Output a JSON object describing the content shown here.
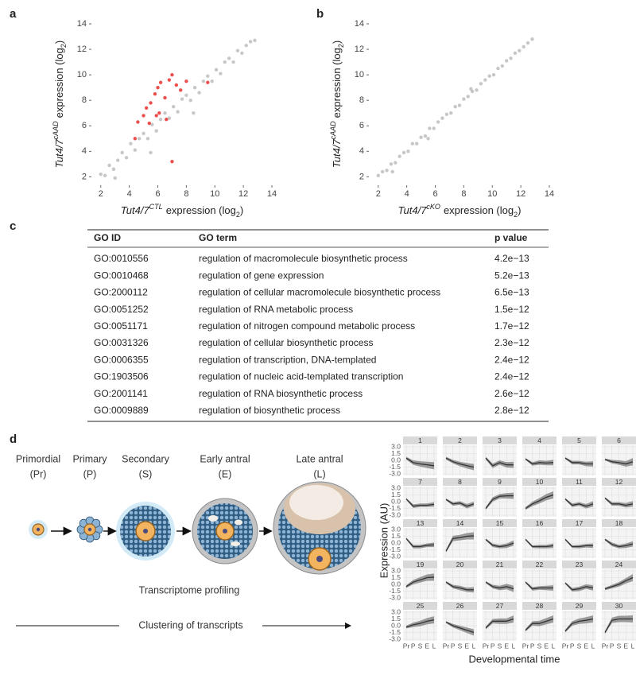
{
  "panel_labels": [
    "a",
    "b",
    "c",
    "d"
  ],
  "chart_data": [
    {
      "type": "scatter",
      "xlim": [
        1.4,
        14
      ],
      "ylim": [
        1.4,
        14
      ],
      "xticks": [
        2,
        4,
        6,
        8,
        10,
        12,
        14
      ],
      "yticks": [
        2,
        4,
        6,
        8,
        10,
        12,
        14
      ],
      "x_label": [
        "Tut4/7",
        "CTL",
        "expression (log",
        "2",
        ")"
      ],
      "y_label": [
        "Tut4/7",
        "cAAD",
        "expression (log",
        "2",
        ")"
      ],
      "series": [
        {
          "color": "#bdbdbd",
          "x": [
            2,
            2.3,
            2.6,
            2.9,
            3.2,
            3.5,
            3.8,
            4.1,
            4.4,
            4.7,
            5,
            5.3,
            5.6,
            5.9,
            6.2,
            6.5,
            6.8,
            7.1,
            7.4,
            7.7,
            8,
            8.3,
            8.6,
            8.9,
            9.2,
            9.5,
            9.8,
            10.1,
            10.4,
            10.7,
            11,
            11.3,
            11.6,
            11.9,
            12.2,
            12.5,
            12.8,
            3,
            5.5,
            8.5
          ],
          "values": [
            2.2,
            2.1,
            2.9,
            2.6,
            3.3,
            3.9,
            3.5,
            4.6,
            4.1,
            5.0,
            5.4,
            5.0,
            6.1,
            5.6,
            6.5,
            7.0,
            6.6,
            7.5,
            7.1,
            8.1,
            8.4,
            8.0,
            9.0,
            8.6,
            9.5,
            9.9,
            9.5,
            10.4,
            10.1,
            11.0,
            11.3,
            11.0,
            11.9,
            11.7,
            12.3,
            12.6,
            12.7,
            1.9,
            3.9,
            7.0
          ]
        },
        {
          "color": "#e8312f",
          "x": [
            4.6,
            5,
            5.2,
            5.5,
            5.8,
            6,
            6.2,
            6.5,
            6.8,
            7,
            7.3,
            7.6,
            8,
            5.4,
            6.1,
            4.4,
            6.6,
            9.5,
            7,
            5.9
          ],
          "values": [
            6.3,
            6.8,
            7.4,
            7.8,
            8.5,
            9,
            9.4,
            8.2,
            9.6,
            10,
            9.2,
            8.8,
            9.5,
            6.2,
            7,
            5,
            6.5,
            9.4,
            3.2,
            6.8
          ]
        }
      ]
    },
    {
      "type": "scatter",
      "xlim": [
        1.4,
        14
      ],
      "ylim": [
        1.4,
        14
      ],
      "xticks": [
        2,
        4,
        6,
        8,
        10,
        12,
        14
      ],
      "yticks": [
        2,
        4,
        6,
        8,
        10,
        12,
        14
      ],
      "x_label": [
        "Tut4/7",
        "cKO",
        "expression (log",
        "2",
        ")"
      ],
      "y_label": [
        "Tut4/7",
        "cAAD",
        "expression (log",
        "2",
        ")"
      ],
      "series": [
        {
          "color": "#bdbdbd",
          "x": [
            2,
            2.3,
            2.6,
            2.9,
            3.2,
            3.5,
            3.8,
            4.1,
            4.4,
            4.7,
            5,
            5.3,
            5.6,
            5.9,
            6.2,
            6.5,
            6.8,
            7.1,
            7.4,
            7.7,
            8,
            8.3,
            8.6,
            8.9,
            9.2,
            9.5,
            9.8,
            10.1,
            10.4,
            10.7,
            11,
            11.3,
            11.6,
            11.9,
            12.2,
            12.5,
            12.8,
            3,
            5.5,
            8.5
          ],
          "values": [
            2.1,
            2.4,
            2.5,
            3.0,
            3.1,
            3.6,
            3.9,
            4.0,
            4.6,
            4.6,
            5.1,
            5.2,
            5.8,
            5.8,
            6.3,
            6.6,
            6.9,
            7.0,
            7.5,
            7.6,
            8.1,
            8.3,
            8.7,
            8.8,
            9.3,
            9.6,
            9.9,
            10.0,
            10.5,
            10.7,
            11.1,
            11.3,
            11.7,
            11.9,
            12.2,
            12.5,
            12.8,
            2.4,
            5.0,
            8.9
          ]
        }
      ]
    },
    {
      "type": "line",
      "categories": [
        "Pr",
        "P",
        "S",
        "E",
        "L"
      ],
      "ylim": [
        -3,
        3
      ],
      "yticks": [
        {
          "value": 3,
          "label": "3.0"
        },
        {
          "value": 1.5,
          "label": "1.5"
        },
        {
          "value": 0,
          "label": "0.0"
        },
        {
          "value": -1.5,
          "label": "-1.5"
        },
        {
          "value": -3,
          "label": "-3.0"
        }
      ],
      "y_label": "Expression (AU)",
      "x_label": "Developmental time",
      "band_color": "#8a8a8a",
      "series": [
        {
          "name": "1",
          "color": "#333333",
          "values": [
            0.5,
            -0.5,
            -0.8,
            -1,
            -1.2
          ],
          "spread": [
            0.3,
            0.5,
            0.6,
            0.7,
            0.8
          ]
        },
        {
          "name": "2",
          "color": "#333333",
          "values": [
            0.5,
            -0.3,
            -0.8,
            -1.2,
            -1.5
          ],
          "spread": [
            0.3,
            0.4,
            0.5,
            0.6,
            0.7
          ]
        },
        {
          "name": "3",
          "color": "#333333",
          "values": [
            0.5,
            -1.2,
            -0.5,
            -1,
            -1
          ],
          "spread": [
            0.3,
            0.5,
            0.5,
            0.6,
            0.7
          ]
        },
        {
          "name": "4",
          "color": "#333333",
          "values": [
            0.3,
            -0.8,
            -0.5,
            -0.6,
            -0.5
          ],
          "spread": [
            0.2,
            0.4,
            0.5,
            0.5,
            0.6
          ]
        },
        {
          "name": "5",
          "color": "#333333",
          "values": [
            0.5,
            -0.5,
            -0.5,
            -0.8,
            -0.8
          ],
          "spread": [
            0.2,
            0.4,
            0.4,
            0.5,
            0.6
          ]
        },
        {
          "name": "6",
          "color": "#333333",
          "values": [
            0.2,
            -0.3,
            -0.5,
            -0.8,
            -0.3
          ],
          "spread": [
            0.2,
            0.4,
            0.5,
            0.6,
            0.8
          ]
        },
        {
          "name": "7",
          "color": "#333333",
          "values": [
            0.6,
            -1,
            -0.8,
            -0.8,
            -0.6
          ],
          "spread": [
            0.2,
            0.4,
            0.4,
            0.4,
            0.5
          ]
        },
        {
          "name": "8",
          "color": "#333333",
          "values": [
            0.5,
            -0.5,
            -0.3,
            -1,
            -0.5
          ],
          "spread": [
            0.2,
            0.4,
            0.4,
            0.5,
            0.5
          ]
        },
        {
          "name": "9",
          "color": "#333333",
          "values": [
            -1.5,
            0.5,
            1.2,
            1.3,
            1.3
          ],
          "spread": [
            0.3,
            0.5,
            0.5,
            0.6,
            0.7
          ]
        },
        {
          "name": "10",
          "color": "#333333",
          "values": [
            -1.5,
            -0.5,
            0.2,
            1,
            1.5
          ],
          "spread": [
            0.3,
            0.5,
            0.6,
            0.7,
            0.8
          ]
        },
        {
          "name": "11",
          "color": "#333333",
          "values": [
            0.6,
            -0.8,
            -0.5,
            -1,
            -0.5
          ],
          "spread": [
            0.2,
            0.4,
            0.4,
            0.5,
            0.6
          ]
        },
        {
          "name": "12",
          "color": "#333333",
          "values": [
            0.8,
            -0.5,
            -0.5,
            -0.8,
            -0.5
          ],
          "spread": [
            0.2,
            0.4,
            0.4,
            0.5,
            0.6
          ]
        },
        {
          "name": "13",
          "color": "#333333",
          "values": [
            1,
            -0.8,
            -0.8,
            -0.5,
            -0.4
          ],
          "spread": [
            0.2,
            0.4,
            0.4,
            0.4,
            0.5
          ]
        },
        {
          "name": "14",
          "color": "#333333",
          "values": [
            -1.8,
            1,
            1.2,
            1.5,
            1.6
          ],
          "spread": [
            0.3,
            0.6,
            0.6,
            0.7,
            0.8
          ]
        },
        {
          "name": "15",
          "color": "#333333",
          "values": [
            0.8,
            -0.5,
            -0.8,
            -0.6,
            0
          ],
          "spread": [
            0.2,
            0.4,
            0.4,
            0.5,
            0.6
          ]
        },
        {
          "name": "16",
          "color": "#333333",
          "values": [
            0.8,
            -0.8,
            -0.8,
            -0.8,
            -0.6
          ],
          "spread": [
            0.2,
            0.3,
            0.4,
            0.4,
            0.5
          ]
        },
        {
          "name": "17",
          "color": "#333333",
          "values": [
            0.8,
            -0.8,
            -0.8,
            -0.6,
            -0.6
          ],
          "spread": [
            0.2,
            0.3,
            0.4,
            0.4,
            0.5
          ]
        },
        {
          "name": "18",
          "color": "#333333",
          "values": [
            0.8,
            -0.3,
            -0.8,
            -0.6,
            -0.2
          ],
          "spread": [
            0.2,
            0.4,
            0.4,
            0.5,
            0.6
          ]
        },
        {
          "name": "19",
          "color": "#333333",
          "values": [
            -0.5,
            0.5,
            1,
            1.5,
            1.6
          ],
          "spread": [
            0.3,
            0.5,
            0.6,
            0.7,
            0.8
          ]
        },
        {
          "name": "20",
          "color": "#333333",
          "values": [
            0.5,
            -0.5,
            -0.8,
            -1.2,
            -1.2
          ],
          "spread": [
            0.2,
            0.4,
            0.5,
            0.5,
            0.6
          ]
        },
        {
          "name": "21",
          "color": "#333333",
          "values": [
            0.5,
            -0.5,
            -0.8,
            -0.5,
            -1
          ],
          "spread": [
            0.2,
            0.4,
            0.5,
            0.6,
            0.7
          ]
        },
        {
          "name": "22",
          "color": "#333333",
          "values": [
            0.5,
            -1,
            -0.8,
            -0.8,
            -0.8
          ],
          "spread": [
            0.2,
            0.4,
            0.4,
            0.5,
            0.6
          ]
        },
        {
          "name": "23",
          "color": "#333333",
          "values": [
            0.3,
            -1.2,
            -1,
            -0.5,
            -0.8
          ],
          "spread": [
            0.2,
            0.4,
            0.5,
            0.5,
            0.6
          ]
        },
        {
          "name": "24",
          "color": "#333333",
          "values": [
            -1,
            -0.5,
            0,
            0.8,
            1.5
          ],
          "spread": [
            0.3,
            0.4,
            0.5,
            0.6,
            0.8
          ]
        },
        {
          "name": "25",
          "color": "#333333",
          "values": [
            -0.3,
            0.2,
            0.5,
            1,
            1.3
          ],
          "spread": [
            0.3,
            0.5,
            0.6,
            0.7,
            0.8
          ]
        },
        {
          "name": "26",
          "color": "#333333",
          "values": [
            0.8,
            0,
            -0.5,
            -1,
            -1.5
          ],
          "spread": [
            0.2,
            0.4,
            0.5,
            0.6,
            0.7
          ]
        },
        {
          "name": "27",
          "color": "#333333",
          "values": [
            -0.5,
            1,
            1,
            1,
            1.5
          ],
          "spread": [
            0.3,
            0.5,
            0.6,
            0.6,
            0.8
          ]
        },
        {
          "name": "28",
          "color": "#333333",
          "values": [
            -1,
            0.5,
            0.5,
            1,
            1.5
          ],
          "spread": [
            0.3,
            0.5,
            0.6,
            0.7,
            0.8
          ]
        },
        {
          "name": "29",
          "color": "#333333",
          "values": [
            -1.2,
            0.5,
            1,
            1.2,
            1.5
          ],
          "spread": [
            0.3,
            0.5,
            0.6,
            0.7,
            0.8
          ]
        },
        {
          "name": "30",
          "color": "#333333",
          "values": [
            -1.5,
            1.2,
            1.5,
            1.5,
            1.5
          ],
          "spread": [
            0.3,
            0.6,
            0.7,
            0.7,
            0.8
          ]
        }
      ]
    }
  ],
  "table": {
    "header": [
      "GO ID",
      "GO term",
      "p value"
    ],
    "rows": [
      [
        "GO:0010556",
        "regulation of macromolecule biosynthetic process",
        "4.2e−13"
      ],
      [
        "GO:0010468",
        "regulation of gene expression",
        "5.2e−13"
      ],
      [
        "GO:2000112",
        "regulation of cellular macromolecule biosynthetic process",
        "6.5e−13"
      ],
      [
        "GO:0051252",
        "regulation of RNA metabolic process",
        "1.5e−12"
      ],
      [
        "GO:0051171",
        "regulation of nitrogen compound metabolic process",
        "1.7e−12"
      ],
      [
        "GO:0031326",
        "regulation of cellular biosynthetic process",
        "2.3e−12"
      ],
      [
        "GO:0006355",
        "regulation of transcription, DNA-templated",
        "2.4e−12"
      ],
      [
        "GO:1903506",
        "regulation of nucleic acid-templated transcription",
        "2.4e−12"
      ],
      [
        "GO:2001141",
        "regulation of RNA biosynthetic process",
        "2.6e−12"
      ],
      [
        "GO:0009889",
        "regulation of biosynthetic process",
        "2.8e−12"
      ]
    ]
  },
  "diagram": {
    "stages": [
      {
        "name": "Primordial",
        "abbr": "(Pr)"
      },
      {
        "name": "Primary",
        "abbr": "(P)"
      },
      {
        "name": "Secondary",
        "abbr": "(S)"
      },
      {
        "name": "Early antral",
        "abbr": "(E)"
      },
      {
        "name": "Late antral",
        "abbr": "(L)"
      }
    ],
    "profiling": "Transcriptome profiling",
    "clustering": "Clustering of transcripts"
  }
}
